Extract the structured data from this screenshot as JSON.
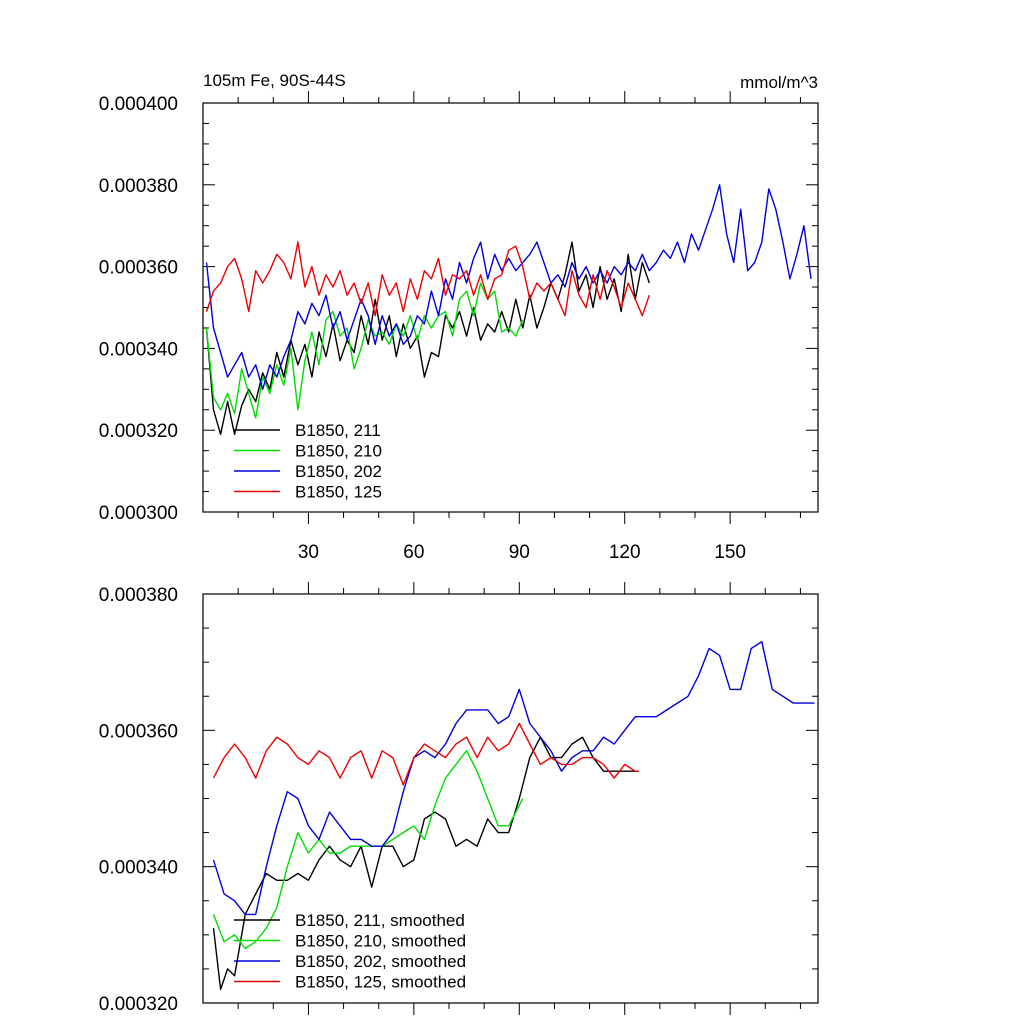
{
  "chart_data": [
    {
      "type": "line",
      "title_left": "105m Fe, 90S-44S",
      "title_right": "mmol/m^3",
      "xlim": [
        0,
        175
      ],
      "ylim": [
        0.0003,
        0.0004
      ],
      "x_ticks": [
        30,
        60,
        90,
        120,
        150
      ],
      "x_tick_labels": [
        "30",
        "60",
        "90",
        "120",
        "150"
      ],
      "y_ticks": [
        0.0003,
        0.00032,
        0.00034,
        0.00036,
        0.00038,
        0.0004
      ],
      "y_tick_labels": [
        "0.000300",
        "0.000320",
        "0.000340",
        "0.000360",
        "0.000380",
        "0.000400"
      ],
      "legend_position": "bottom-left",
      "series": [
        {
          "name": "B1850, 211",
          "color": "#000000",
          "x": [
            1,
            3,
            5,
            7,
            9,
            11,
            13,
            15,
            17,
            19,
            21,
            23,
            25,
            27,
            29,
            31,
            33,
            35,
            37,
            39,
            41,
            43,
            45,
            47,
            49,
            51,
            53,
            55,
            57,
            59,
            61,
            63,
            65,
            67,
            69,
            71,
            73,
            75,
            77,
            79,
            81,
            83,
            85,
            87,
            89,
            91,
            93,
            95,
            97,
            99,
            101,
            103,
            105,
            107,
            109,
            111,
            113,
            115,
            117,
            119,
            121,
            123,
            125,
            127
          ],
          "values": [
            0.000345,
            0.000325,
            0.000319,
            0.000327,
            0.000319,
            0.000326,
            0.00033,
            0.000327,
            0.000334,
            0.00033,
            0.000339,
            0.000333,
            0.000342,
            0.000336,
            0.000341,
            0.000333,
            0.000344,
            0.000338,
            0.000346,
            0.000337,
            0.000342,
            0.000339,
            0.000348,
            0.000341,
            0.000352,
            0.000342,
            0.000348,
            0.000338,
            0.000346,
            0.00034,
            0.000343,
            0.000333,
            0.000339,
            0.000338,
            0.000348,
            0.000345,
            0.000349,
            0.000343,
            0.00035,
            0.000342,
            0.000346,
            0.000344,
            0.000349,
            0.000344,
            0.000352,
            0.000345,
            0.000353,
            0.000345,
            0.00035,
            0.000356,
            0.000352,
            0.000358,
            0.000366,
            0.000354,
            0.000358,
            0.00035,
            0.00036,
            0.000352,
            0.000357,
            0.000349,
            0.000363,
            0.000352,
            0.000361,
            0.000356
          ]
        },
        {
          "name": "B1850, 210",
          "color": "#00dd00",
          "x": [
            1,
            3,
            5,
            7,
            9,
            11,
            13,
            15,
            17,
            19,
            21,
            23,
            25,
            27,
            29,
            31,
            33,
            35,
            37,
            39,
            41,
            43,
            45,
            47,
            49,
            51,
            53,
            55,
            57,
            59,
            61,
            63,
            65,
            67,
            69,
            71,
            73,
            75,
            77,
            79,
            81,
            83,
            85,
            87,
            89,
            91
          ],
          "values": [
            0.000345,
            0.000328,
            0.000325,
            0.000329,
            0.000324,
            0.000335,
            0.000329,
            0.000323,
            0.000333,
            0.000329,
            0.000336,
            0.000331,
            0.00034,
            0.000325,
            0.000337,
            0.000344,
            0.000336,
            0.000347,
            0.000349,
            0.000343,
            0.000345,
            0.000335,
            0.00034,
            0.000347,
            0.000343,
            0.000344,
            0.000341,
            0.000346,
            0.000343,
            0.000348,
            0.000342,
            0.000348,
            0.000345,
            0.000348,
            0.000349,
            0.000343,
            0.000352,
            0.000354,
            0.000348,
            0.000356,
            0.000352,
            0.000354,
            0.000344,
            0.000345,
            0.000343,
            0.000347
          ]
        },
        {
          "name": "B1850, 202",
          "color": "#0000dd",
          "x": [
            1,
            3,
            5,
            7,
            9,
            11,
            13,
            15,
            17,
            19,
            21,
            23,
            25,
            27,
            29,
            31,
            33,
            35,
            37,
            39,
            41,
            43,
            45,
            47,
            49,
            51,
            53,
            55,
            57,
            59,
            61,
            63,
            65,
            67,
            69,
            71,
            73,
            75,
            77,
            79,
            81,
            83,
            85,
            87,
            89,
            91,
            93,
            95,
            97,
            99,
            101,
            103,
            105,
            107,
            109,
            111,
            113,
            115,
            117,
            119,
            121,
            123,
            125,
            127,
            129,
            131,
            133,
            135,
            137,
            139,
            141,
            143,
            145,
            147,
            149,
            151,
            153,
            155,
            157,
            159,
            161,
            163,
            165,
            167,
            169,
            171,
            173
          ],
          "values": [
            0.000361,
            0.000345,
            0.000339,
            0.000333,
            0.000336,
            0.000339,
            0.000333,
            0.000336,
            0.00033,
            0.000336,
            0.000333,
            0.000338,
            0.000342,
            0.000349,
            0.000346,
            0.000351,
            0.000348,
            0.000353,
            0.000345,
            0.000349,
            0.000342,
            0.000347,
            0.000352,
            0.000348,
            0.000341,
            0.000348,
            0.000343,
            0.000346,
            0.000341,
            0.000343,
            0.000348,
            0.000346,
            0.000354,
            0.000348,
            0.000357,
            0.000352,
            0.000361,
            0.000356,
            0.000362,
            0.000366,
            0.000357,
            0.000363,
            0.000359,
            0.000362,
            0.000359,
            0.000361,
            0.000363,
            0.000366,
            0.000361,
            0.000356,
            0.000358,
            0.000355,
            0.000361,
            0.000357,
            0.00036,
            0.000356,
            0.000359,
            0.000356,
            0.00036,
            0.000358,
            0.000361,
            0.000359,
            0.000363,
            0.000359,
            0.000361,
            0.000364,
            0.000362,
            0.000366,
            0.000361,
            0.000368,
            0.000364,
            0.000369,
            0.000374,
            0.00038,
            0.000368,
            0.000361,
            0.000374,
            0.000359,
            0.000361,
            0.000366,
            0.000379,
            0.000374,
            0.000366,
            0.000357,
            0.000363,
            0.00037,
            0.000357
          ]
        },
        {
          "name": "B1850, 125",
          "color": "#ee0000",
          "x": [
            1,
            3,
            5,
            7,
            9,
            11,
            13,
            15,
            17,
            19,
            21,
            23,
            25,
            27,
            29,
            31,
            33,
            35,
            37,
            39,
            41,
            43,
            45,
            47,
            49,
            51,
            53,
            55,
            57,
            59,
            61,
            63,
            65,
            67,
            69,
            71,
            73,
            75,
            77,
            79,
            81,
            83,
            85,
            87,
            89,
            91,
            93,
            95,
            97,
            99,
            101,
            103,
            105,
            107,
            109,
            111,
            113,
            115,
            117,
            119,
            121,
            123,
            125,
            127
          ],
          "values": [
            0.000349,
            0.000354,
            0.000356,
            0.00036,
            0.000362,
            0.000357,
            0.000349,
            0.000359,
            0.000356,
            0.000359,
            0.000363,
            0.000361,
            0.000357,
            0.000366,
            0.000355,
            0.00036,
            0.000353,
            0.000358,
            0.000355,
            0.000359,
            0.000353,
            0.000356,
            0.000351,
            0.000356,
            0.000348,
            0.000358,
            0.000353,
            0.000356,
            0.000349,
            0.000357,
            0.000352,
            0.000359,
            0.000357,
            0.000362,
            0.000353,
            0.000358,
            0.000357,
            0.000359,
            0.000353,
            0.000358,
            0.000352,
            0.000357,
            0.000358,
            0.000364,
            0.000365,
            0.00036,
            0.000352,
            0.000356,
            0.000354,
            0.000356,
            0.000352,
            0.000348,
            0.000359,
            0.000353,
            0.00035,
            0.000358,
            0.000352,
            0.000359,
            0.000355,
            0.00035,
            0.000356,
            0.000352,
            0.000348,
            0.000353
          ]
        }
      ]
    },
    {
      "type": "line",
      "xlim": [
        0,
        175
      ],
      "ylim": [
        0.00032,
        0.00038
      ],
      "x_ticks": [
        30,
        60,
        90,
        120,
        150
      ],
      "y_ticks": [
        0.00032,
        0.00034,
        0.00036,
        0.00038
      ],
      "y_tick_labels": [
        "0.000320",
        "0.000340",
        "0.000360",
        "0.000380"
      ],
      "legend_position": "bottom-left",
      "series": [
        {
          "name": "B1850, 211, smoothed",
          "color": "#000000",
          "x": [
            3,
            5,
            7,
            9,
            12,
            15,
            18,
            21,
            24,
            27,
            30,
            33,
            36,
            39,
            42,
            45,
            48,
            51,
            54,
            57,
            60,
            63,
            66,
            69,
            72,
            75,
            78,
            81,
            84,
            87,
            90,
            93,
            96,
            99,
            102,
            105,
            108,
            111,
            114,
            117,
            120,
            123,
            124
          ],
          "values": [
            0.000331,
            0.000322,
            0.000325,
            0.000324,
            0.000333,
            0.000336,
            0.000339,
            0.000338,
            0.000338,
            0.000339,
            0.000338,
            0.000341,
            0.000343,
            0.000341,
            0.00034,
            0.000343,
            0.000337,
            0.000343,
            0.000343,
            0.00034,
            0.000341,
            0.000347,
            0.000348,
            0.000347,
            0.000343,
            0.000344,
            0.000343,
            0.000347,
            0.000345,
            0.000345,
            0.00035,
            0.000356,
            0.000359,
            0.000356,
            0.000356,
            0.000358,
            0.000359,
            0.000356,
            0.000354,
            0.000354,
            0.000354,
            0.000354,
            0.000354
          ]
        },
        {
          "name": "B1850, 210, smoothed",
          "color": "#00dd00",
          "x": [
            3,
            6,
            9,
            12,
            15,
            18,
            21,
            24,
            27,
            30,
            33,
            36,
            39,
            42,
            45,
            48,
            51,
            54,
            57,
            60,
            63,
            66,
            69,
            72,
            75,
            78,
            81,
            84,
            87,
            90,
            91
          ],
          "values": [
            0.000333,
            0.000329,
            0.00033,
            0.000328,
            0.000329,
            0.000331,
            0.000334,
            0.00034,
            0.000345,
            0.000342,
            0.000344,
            0.000342,
            0.000342,
            0.000343,
            0.000343,
            0.000343,
            0.000343,
            0.000344,
            0.000345,
            0.000346,
            0.000344,
            0.000349,
            0.000353,
            0.000355,
            0.000357,
            0.000354,
            0.00035,
            0.000346,
            0.000346,
            0.000349,
            0.00035
          ]
        },
        {
          "name": "B1850, 202, smoothed",
          "color": "#0000dd",
          "x": [
            3,
            6,
            9,
            12,
            15,
            18,
            21,
            24,
            27,
            30,
            33,
            36,
            39,
            42,
            45,
            48,
            51,
            54,
            57,
            60,
            63,
            66,
            69,
            72,
            75,
            78,
            81,
            84,
            87,
            90,
            93,
            96,
            99,
            102,
            105,
            108,
            111,
            114,
            117,
            120,
            123,
            126,
            129,
            132,
            135,
            138,
            141,
            144,
            147,
            150,
            153,
            156,
            159,
            162,
            165,
            168,
            171,
            174
          ],
          "values": [
            0.000341,
            0.000336,
            0.000335,
            0.000333,
            0.000333,
            0.00034,
            0.000346,
            0.000351,
            0.00035,
            0.000346,
            0.000344,
            0.000348,
            0.000346,
            0.000344,
            0.000344,
            0.000343,
            0.000343,
            0.000345,
            0.000351,
            0.000356,
            0.000357,
            0.000356,
            0.000358,
            0.000361,
            0.000363,
            0.000363,
            0.000363,
            0.000361,
            0.000362,
            0.000366,
            0.000361,
            0.000359,
            0.000357,
            0.000354,
            0.000356,
            0.000357,
            0.000357,
            0.000359,
            0.000358,
            0.00036,
            0.000362,
            0.000362,
            0.000362,
            0.000363,
            0.000364,
            0.000365,
            0.000368,
            0.000372,
            0.000371,
            0.000366,
            0.000366,
            0.000372,
            0.000373,
            0.000366,
            0.000365,
            0.000364,
            0.000364,
            0.000364
          ]
        },
        {
          "name": "B1850, 125, smoothed",
          "color": "#ee0000",
          "x": [
            3,
            6,
            9,
            12,
            15,
            18,
            21,
            24,
            27,
            30,
            33,
            36,
            39,
            42,
            45,
            48,
            51,
            54,
            57,
            60,
            63,
            66,
            69,
            72,
            75,
            78,
            81,
            84,
            87,
            90,
            93,
            96,
            99,
            102,
            105,
            108,
            111,
            114,
            117,
            120,
            123,
            124
          ],
          "values": [
            0.000353,
            0.000356,
            0.000358,
            0.000356,
            0.000353,
            0.000357,
            0.000359,
            0.000358,
            0.000356,
            0.000355,
            0.000357,
            0.000356,
            0.000353,
            0.000356,
            0.000357,
            0.000353,
            0.000357,
            0.000356,
            0.000352,
            0.000356,
            0.000358,
            0.000357,
            0.000356,
            0.000358,
            0.000359,
            0.000356,
            0.000359,
            0.000357,
            0.000358,
            0.000361,
            0.000358,
            0.000355,
            0.000356,
            0.000355,
            0.000355,
            0.000356,
            0.000356,
            0.000355,
            0.000353,
            0.000355,
            0.000354,
            0.000354
          ]
        }
      ]
    }
  ]
}
